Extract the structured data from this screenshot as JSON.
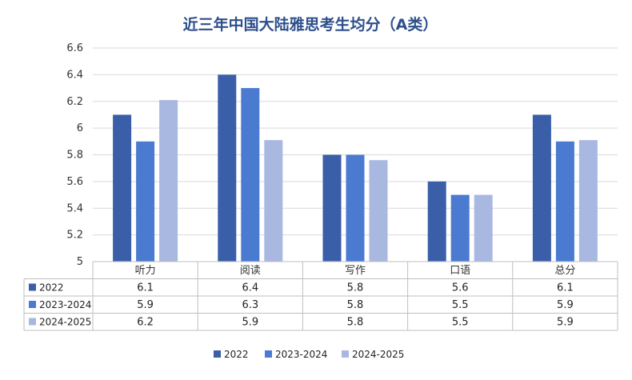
{
  "chart_data": {
    "type": "bar",
    "title": "近三年中国大陆雅思考生均分（A类）",
    "categories": [
      "听力",
      "阅读",
      "写作",
      "口语",
      "总分"
    ],
    "series": [
      {
        "name": "2022",
        "values": [
          6.1,
          6.4,
          5.8,
          5.6,
          6.1
        ],
        "table_values": [
          "6.1",
          "6.4",
          "5.8",
          "5.6",
          "6.1"
        ]
      },
      {
        "name": "2023-2024",
        "values": [
          5.9,
          6.3,
          5.8,
          5.5,
          5.9
        ],
        "table_values": [
          "5.9",
          "6.3",
          "5.8",
          "5.5",
          "5.9"
        ]
      },
      {
        "name": "2024-2025",
        "values": [
          6.21,
          5.91,
          5.76,
          5.5,
          5.91
        ],
        "table_values": [
          "6.2",
          "5.9",
          "5.8",
          "5.5",
          "5.9"
        ]
      }
    ],
    "y_ticks": [
      "6.6",
      "6.4",
      "6.2",
      "6",
      "5.8",
      "5.6",
      "5.4",
      "5.2",
      "5"
    ],
    "ylim": [
      5,
      6.6
    ],
    "grid": true,
    "legend": "bottom",
    "data_table": true,
    "colors": [
      "#3a5ea8",
      "#4a7bd0",
      "#a9b8e0"
    ]
  }
}
